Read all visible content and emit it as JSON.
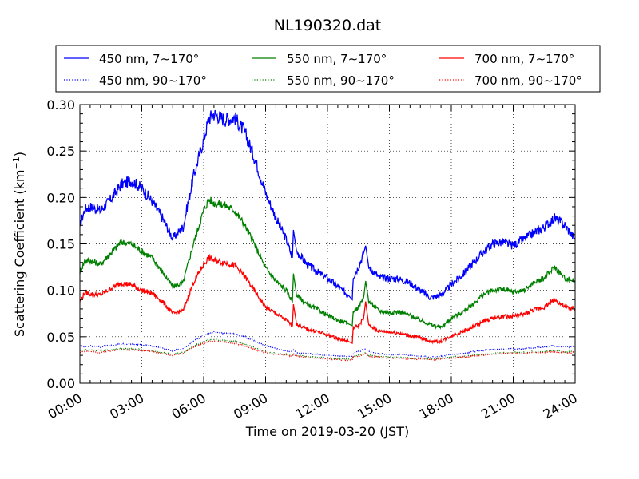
{
  "chart_data": {
    "type": "line",
    "title": "NL190320.dat",
    "xlabel": "Time on 2019-03-20 (JST)",
    "ylabel": "Scattering Coefficient (km",
    "ylabel_sup": "−1",
    "ylabel_close": ")",
    "xlim": [
      0,
      24
    ],
    "ylim": [
      0.0,
      0.3
    ],
    "grid": true,
    "legend_placement": "top (above plot)",
    "x_ticks": [
      0,
      3,
      6,
      9,
      12,
      15,
      18,
      21,
      24
    ],
    "x_tick_labels": [
      "00:00",
      "03:00",
      "06:00",
      "09:00",
      "12:00",
      "15:00",
      "18:00",
      "21:00",
      "24:00"
    ],
    "y_ticks": [
      0.0,
      0.05,
      0.1,
      0.15,
      0.2,
      0.25,
      0.3
    ],
    "y_tick_labels": [
      "0.00",
      "0.05",
      "0.10",
      "0.15",
      "0.20",
      "0.25",
      "0.30"
    ],
    "x": [
      0,
      0.25,
      0.5,
      1,
      1.5,
      2,
      2.5,
      3,
      3.5,
      4,
      4.5,
      5,
      5.5,
      6,
      6.25,
      6.5,
      7,
      7.5,
      8,
      8.5,
      9,
      9.5,
      10,
      10.3,
      10.35,
      10.5,
      11,
      11.5,
      12,
      12.5,
      13,
      13.2,
      13.25,
      13.5,
      13.75,
      13.85,
      14,
      14.5,
      15,
      15.5,
      16,
      16.5,
      17,
      17.5,
      18,
      18.5,
      19,
      19.5,
      20,
      20.5,
      21,
      21.5,
      22,
      22.5,
      23,
      23.5,
      24
    ],
    "series": [
      {
        "name": "450 nm, 7∼170°",
        "color": "#0000ff",
        "style": "solid",
        "values": [
          0.17,
          0.188,
          0.19,
          0.186,
          0.198,
          0.214,
          0.218,
          0.21,
          0.196,
          0.178,
          0.156,
          0.168,
          0.222,
          0.262,
          0.285,
          0.29,
          0.284,
          0.286,
          0.27,
          0.24,
          0.205,
          0.178,
          0.155,
          0.135,
          0.165,
          0.142,
          0.128,
          0.12,
          0.113,
          0.104,
          0.095,
          0.09,
          0.115,
          0.125,
          0.14,
          0.148,
          0.125,
          0.114,
          0.113,
          0.112,
          0.108,
          0.1,
          0.092,
          0.095,
          0.106,
          0.116,
          0.128,
          0.14,
          0.15,
          0.152,
          0.148,
          0.155,
          0.162,
          0.168,
          0.178,
          0.17,
          0.155
        ]
      },
      {
        "name": "550 nm, 7∼170°",
        "color": "#008000",
        "style": "solid",
        "values": [
          0.12,
          0.132,
          0.132,
          0.128,
          0.14,
          0.152,
          0.15,
          0.142,
          0.135,
          0.12,
          0.104,
          0.108,
          0.15,
          0.186,
          0.198,
          0.194,
          0.192,
          0.186,
          0.17,
          0.148,
          0.124,
          0.11,
          0.1,
          0.088,
          0.118,
          0.095,
          0.085,
          0.08,
          0.073,
          0.068,
          0.064,
          0.062,
          0.078,
          0.082,
          0.092,
          0.11,
          0.088,
          0.078,
          0.076,
          0.077,
          0.073,
          0.068,
          0.063,
          0.06,
          0.07,
          0.076,
          0.084,
          0.095,
          0.1,
          0.101,
          0.098,
          0.1,
          0.108,
          0.113,
          0.125,
          0.113,
          0.11
        ]
      },
      {
        "name": "700 nm, 7∼170°",
        "color": "#ff0000",
        "style": "solid",
        "values": [
          0.088,
          0.098,
          0.096,
          0.095,
          0.102,
          0.108,
          0.106,
          0.1,
          0.097,
          0.088,
          0.075,
          0.078,
          0.108,
          0.128,
          0.135,
          0.132,
          0.13,
          0.127,
          0.115,
          0.098,
          0.082,
          0.075,
          0.068,
          0.062,
          0.085,
          0.064,
          0.058,
          0.056,
          0.052,
          0.048,
          0.045,
          0.043,
          0.06,
          0.062,
          0.07,
          0.088,
          0.062,
          0.056,
          0.055,
          0.054,
          0.051,
          0.049,
          0.045,
          0.045,
          0.051,
          0.055,
          0.06,
          0.066,
          0.07,
          0.072,
          0.072,
          0.074,
          0.079,
          0.082,
          0.09,
          0.082,
          0.08
        ]
      },
      {
        "name": "450 nm, 90∼170°",
        "color": "#0000ff",
        "style": "dotted",
        "values": [
          0.04,
          0.039,
          0.04,
          0.039,
          0.041,
          0.042,
          0.042,
          0.041,
          0.04,
          0.038,
          0.035,
          0.037,
          0.045,
          0.052,
          0.054,
          0.055,
          0.054,
          0.053,
          0.05,
          0.045,
          0.04,
          0.037,
          0.035,
          0.034,
          0.036,
          0.033,
          0.032,
          0.031,
          0.03,
          0.029,
          0.029,
          0.029,
          0.032,
          0.034,
          0.036,
          0.037,
          0.034,
          0.032,
          0.031,
          0.031,
          0.03,
          0.029,
          0.028,
          0.029,
          0.031,
          0.032,
          0.034,
          0.035,
          0.036,
          0.037,
          0.037,
          0.037,
          0.038,
          0.039,
          0.04,
          0.039,
          0.039
        ]
      },
      {
        "name": "550 nm, 90∼170°",
        "color": "#008000",
        "style": "dotted",
        "values": [
          0.035,
          0.036,
          0.036,
          0.035,
          0.036,
          0.037,
          0.037,
          0.036,
          0.035,
          0.033,
          0.031,
          0.033,
          0.04,
          0.045,
          0.047,
          0.047,
          0.046,
          0.045,
          0.042,
          0.038,
          0.034,
          0.032,
          0.031,
          0.03,
          0.032,
          0.03,
          0.029,
          0.028,
          0.027,
          0.026,
          0.026,
          0.026,
          0.029,
          0.03,
          0.032,
          0.033,
          0.03,
          0.029,
          0.028,
          0.028,
          0.027,
          0.027,
          0.026,
          0.027,
          0.028,
          0.029,
          0.03,
          0.031,
          0.032,
          0.033,
          0.033,
          0.033,
          0.034,
          0.034,
          0.035,
          0.034,
          0.034
        ]
      },
      {
        "name": "700 nm, 90∼170°",
        "color": "#ff0000",
        "style": "dotted",
        "values": [
          0.033,
          0.034,
          0.034,
          0.033,
          0.035,
          0.036,
          0.036,
          0.035,
          0.034,
          0.032,
          0.03,
          0.032,
          0.038,
          0.043,
          0.045,
          0.045,
          0.044,
          0.043,
          0.04,
          0.036,
          0.033,
          0.031,
          0.03,
          0.029,
          0.031,
          0.029,
          0.028,
          0.027,
          0.026,
          0.025,
          0.025,
          0.025,
          0.028,
          0.029,
          0.031,
          0.032,
          0.029,
          0.028,
          0.027,
          0.027,
          0.026,
          0.026,
          0.025,
          0.026,
          0.027,
          0.028,
          0.029,
          0.03,
          0.031,
          0.032,
          0.032,
          0.032,
          0.033,
          0.033,
          0.034,
          0.033,
          0.033
        ]
      }
    ]
  }
}
